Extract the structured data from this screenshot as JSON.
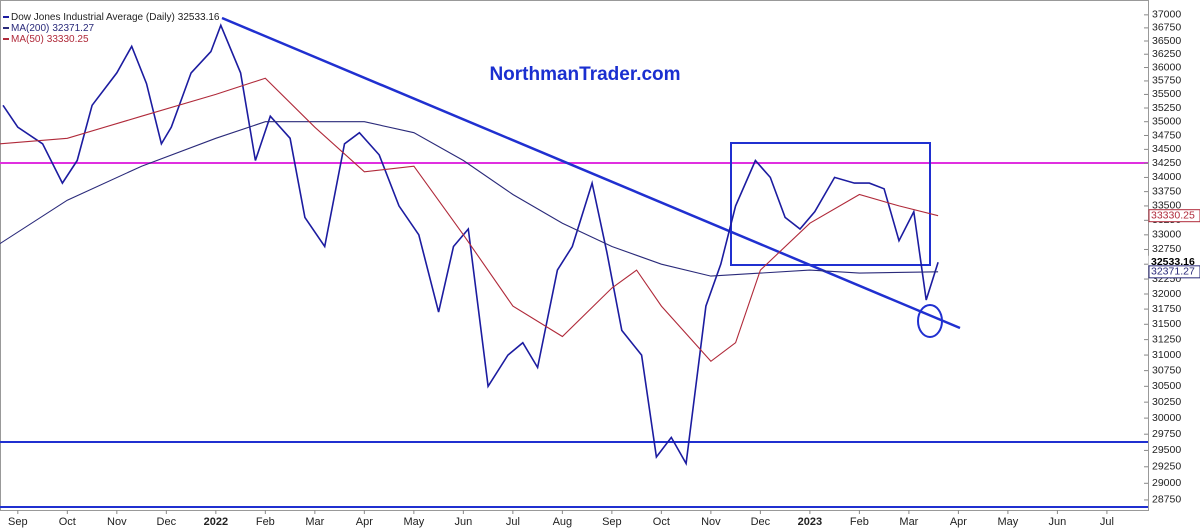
{
  "chart_data": {
    "type": "line",
    "title": "NorthmanTrader.com",
    "log": true,
    "xlim": [
      -0.36,
      22.83
    ],
    "xticks": [
      {
        "value": 0,
        "label": "Sep"
      },
      {
        "value": 1,
        "label": "Oct"
      },
      {
        "value": 2,
        "label": "Nov"
      },
      {
        "value": 3,
        "label": "Dec"
      },
      {
        "value": 4,
        "label": "2022"
      },
      {
        "value": 5,
        "label": "Feb"
      },
      {
        "value": 6,
        "label": "Mar"
      },
      {
        "value": 7,
        "label": "Apr"
      },
      {
        "value": 8,
        "label": "May"
      },
      {
        "value": 9,
        "label": "Jun"
      },
      {
        "value": 10,
        "label": "Jul"
      },
      {
        "value": 11,
        "label": "Aug"
      },
      {
        "value": 12,
        "label": "Sep"
      },
      {
        "value": 13,
        "label": "Oct"
      },
      {
        "value": 14,
        "label": "Nov"
      },
      {
        "value": 15,
        "label": "Dec"
      },
      {
        "value": 16,
        "label": "2023"
      },
      {
        "value": 17,
        "label": "Feb"
      },
      {
        "value": 18,
        "label": "Mar"
      },
      {
        "value": 19,
        "label": "Apr"
      },
      {
        "value": 20,
        "label": "May"
      },
      {
        "value": 21,
        "label": "Jun"
      },
      {
        "value": 22,
        "label": "Jul"
      }
    ],
    "ylim": [
      28600,
      37190
    ],
    "yticks": [
      28750,
      29000,
      29250,
      29500,
      29750,
      30000,
      30250,
      30500,
      30750,
      31000,
      31250,
      31500,
      31750,
      32000,
      32250,
      32500,
      32750,
      33000,
      33250,
      33500,
      33750,
      34000,
      34250,
      34500,
      34750,
      35000,
      35250,
      35500,
      35750,
      36000,
      36250,
      36500,
      36750,
      37000
    ],
    "series": [
      {
        "name": "Dow Jones Industrial Average (Daily)",
        "color": "#1c1ca0",
        "x": [
          -0.3,
          0,
          0.5,
          0.9,
          1.2,
          1.5,
          2.0,
          2.3,
          2.6,
          2.9,
          3.1,
          3.5,
          3.9,
          4.1,
          4.5,
          4.8,
          5.1,
          5.5,
          5.8,
          6.2,
          6.6,
          6.9,
          7.3,
          7.7,
          8.1,
          8.5,
          8.8,
          9.1,
          9.5,
          9.9,
          10.2,
          10.5,
          10.9,
          11.2,
          11.6,
          11.9,
          12.2,
          12.6,
          12.9,
          13.2,
          13.5,
          13.9,
          14.2,
          14.5,
          14.9,
          15.2,
          15.5,
          15.8,
          16.1,
          16.5,
          16.9,
          17.2,
          17.5,
          17.8,
          18.1,
          18.35,
          18.59
        ],
        "values": [
          35300,
          34900,
          34600,
          33900,
          34300,
          35300,
          35900,
          36400,
          35700,
          34600,
          34900,
          35900,
          36300,
          36800,
          35900,
          34300,
          35100,
          34700,
          33300,
          32800,
          34600,
          34800,
          34400,
          33500,
          33000,
          31700,
          32800,
          33100,
          30500,
          31000,
          31200,
          30800,
          32400,
          32800,
          33900,
          32700,
          31400,
          31000,
          29400,
          29700,
          29300,
          31800,
          32500,
          33500,
          34300,
          34000,
          33300,
          33100,
          33400,
          34000,
          33900,
          33900,
          33800,
          32900,
          33400,
          31900,
          32533.16
        ]
      },
      {
        "name": "MA(200)",
        "color": "#2a2a7a",
        "x": [
          -0.36,
          1,
          2.5,
          4,
          5,
          7,
          8,
          9,
          10,
          11,
          12,
          13,
          14,
          15,
          16,
          17,
          18.59
        ],
        "values": [
          32850,
          33600,
          34200,
          34700,
          35000,
          35000,
          34800,
          34300,
          33700,
          33200,
          32800,
          32500,
          32300,
          32350,
          32400,
          32350,
          32371.27
        ]
      },
      {
        "name": "MA(50)",
        "color": "#b02a3a",
        "x": [
          -0.36,
          1,
          2.5,
          4,
          5,
          6,
          7,
          8,
          9,
          10,
          11,
          12,
          12.5,
          13,
          14,
          14.5,
          15,
          16,
          17,
          17.8,
          18.59
        ],
        "values": [
          34600,
          34700,
          35100,
          35500,
          35800,
          34900,
          34100,
          34200,
          33000,
          31800,
          31300,
          32100,
          32400,
          31800,
          30900,
          31200,
          32400,
          33200,
          33700,
          33500,
          33330.25
        ]
      }
    ]
  }
}
